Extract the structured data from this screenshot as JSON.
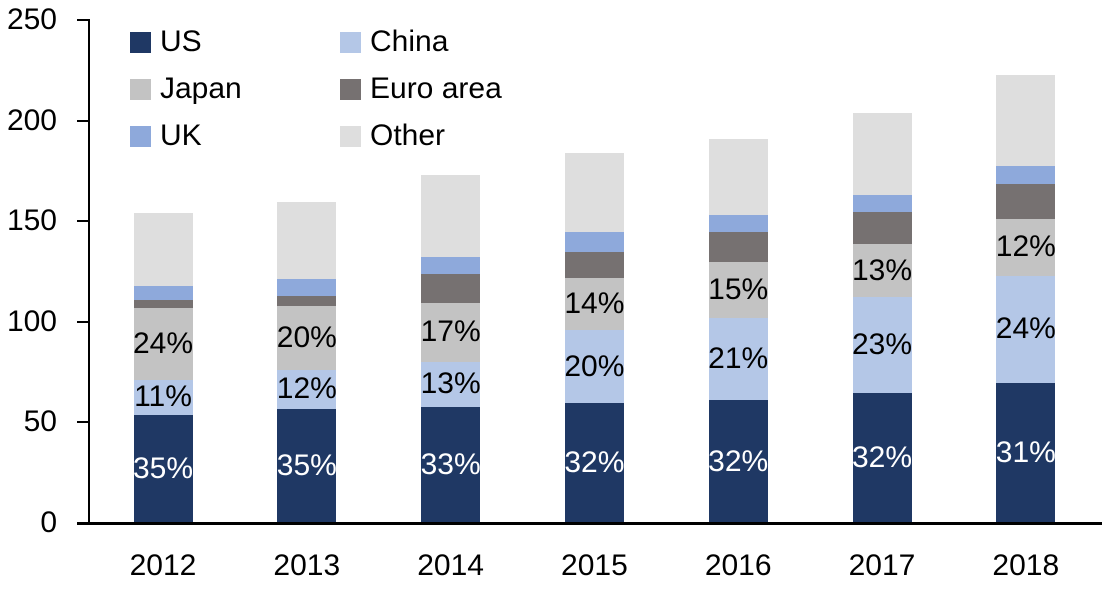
{
  "chart_data": {
    "type": "bar",
    "stacked": true,
    "title": "",
    "categories": [
      "2012",
      "2013",
      "2014",
      "2015",
      "2016",
      "2017",
      "2018"
    ],
    "ylim": [
      0,
      250
    ],
    "yticks": [
      0,
      50,
      100,
      150,
      200,
      250
    ],
    "grid": false,
    "legend_position": "top-left",
    "legend_columns": 2,
    "axis_color": "#000000",
    "text_color": "#000000",
    "background": "#FFFFFF",
    "series": [
      {
        "name": "US",
        "color": "#1F3864",
        "label_color": "#FFFFFF",
        "values": [
          53.7,
          56.7,
          57.7,
          59.6,
          61.1,
          64.6,
          69.6
        ],
        "labels": [
          "35%",
          "35%",
          "33%",
          "32%",
          "32%",
          "32%",
          "31%"
        ]
      },
      {
        "name": "China",
        "color": "#B4C7E7",
        "label_color": "#000000",
        "values": [
          17.4,
          19.4,
          22.4,
          36.3,
          40.8,
          47.7,
          53.2
        ],
        "labels": [
          "11%",
          "12%",
          "13%",
          "20%",
          "21%",
          "23%",
          "24%"
        ]
      },
      {
        "name": "Japan",
        "color": "#C3C3C3",
        "label_color": "#000000",
        "values": [
          35.8,
          31.8,
          29.3,
          25.8,
          27.8,
          26.3,
          28.3
        ],
        "labels": [
          "24%",
          "20%",
          "17%",
          "14%",
          "15%",
          "13%",
          "12%"
        ]
      },
      {
        "name": "Euro area",
        "color": "#767171",
        "values": [
          4.0,
          5.0,
          14.4,
          12.9,
          14.9,
          15.9,
          17.4
        ]
      },
      {
        "name": "UK",
        "color": "#8EA9DB",
        "values": [
          7.0,
          8.4,
          8.4,
          9.9,
          8.4,
          8.4,
          8.9
        ]
      },
      {
        "name": "Other",
        "color": "#DEDEDE",
        "values": [
          36.3,
          38.3,
          40.8,
          39.3,
          37.8,
          40.8,
          45.2
        ]
      }
    ],
    "bar_totals": [
      154,
      160,
      173,
      184,
      191,
      204,
      223
    ]
  }
}
